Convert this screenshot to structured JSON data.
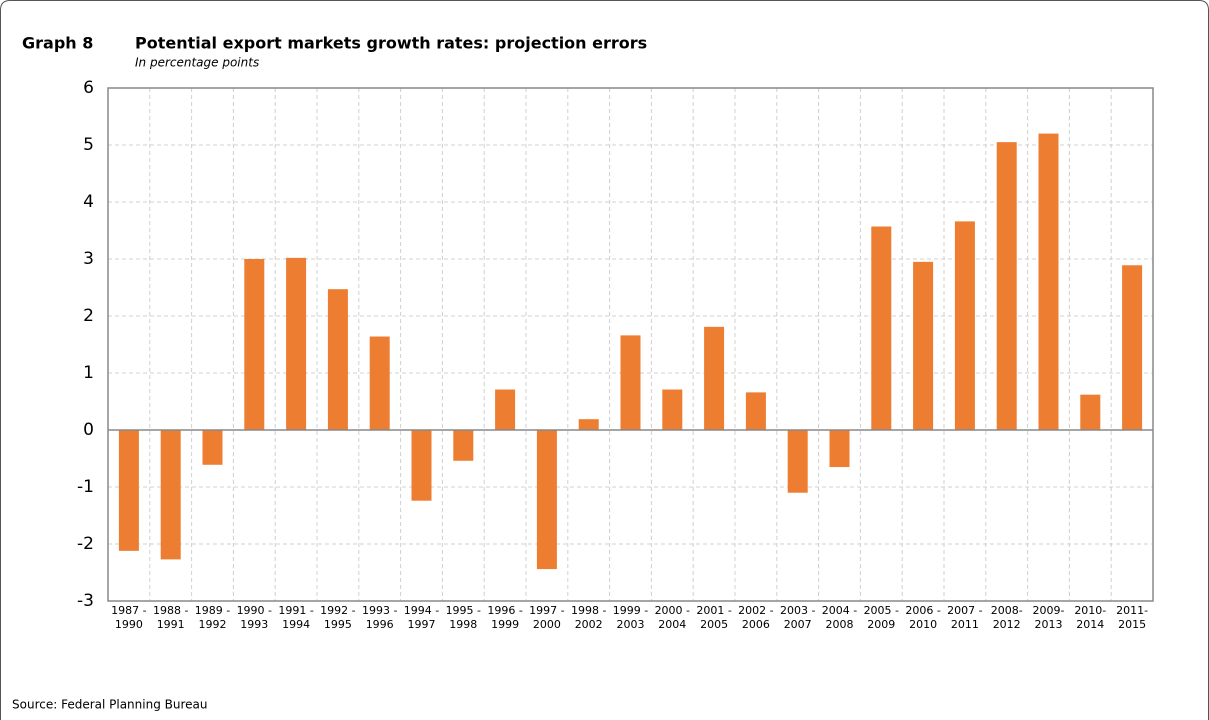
{
  "chart_data": {
    "type": "bar",
    "label": "Graph 8",
    "title": "Potential export markets growth rates: projection errors",
    "subtitle": "In percentage points",
    "source": "Source: Federal Planning Bureau",
    "categories": [
      [
        "1987 -",
        "1990"
      ],
      [
        "1988 -",
        "1991"
      ],
      [
        "1989 -",
        "1992"
      ],
      [
        "1990 -",
        "1993"
      ],
      [
        "1991 -",
        "1994"
      ],
      [
        "1992 -",
        "1995"
      ],
      [
        "1993 -",
        "1996"
      ],
      [
        "1994 -",
        "1997"
      ],
      [
        "1995 -",
        "1998"
      ],
      [
        "1996 -",
        "1999"
      ],
      [
        "1997 -",
        "2000"
      ],
      [
        "1998 -",
        "2002"
      ],
      [
        "1999 -",
        "2003"
      ],
      [
        "2000 -",
        "2004"
      ],
      [
        "2001 -",
        "2005"
      ],
      [
        "2002 -",
        "2006"
      ],
      [
        "2003 -",
        "2007"
      ],
      [
        "2004 -",
        "2008"
      ],
      [
        "2005 -",
        "2009"
      ],
      [
        "2006 -",
        "2010"
      ],
      [
        "2007 -",
        "2011"
      ],
      [
        "2008-",
        "2012"
      ],
      [
        "2009-",
        "2013"
      ],
      [
        "2010-",
        "2014"
      ],
      [
        "2011-",
        "2015"
      ]
    ],
    "values": [
      -2.12,
      -2.27,
      -0.61,
      3.0,
      3.02,
      2.47,
      1.64,
      -1.24,
      -0.54,
      0.71,
      -2.44,
      0.19,
      1.66,
      0.71,
      1.81,
      0.66,
      -1.1,
      -0.65,
      3.57,
      2.95,
      3.66,
      5.05,
      5.2,
      0.62,
      2.89
    ],
    "color": "#ed7d31",
    "ylim": [
      -3,
      6
    ],
    "yticks": [
      -3,
      -2,
      -1,
      0,
      1,
      2,
      3,
      4,
      5,
      6
    ],
    "grid": true
  }
}
